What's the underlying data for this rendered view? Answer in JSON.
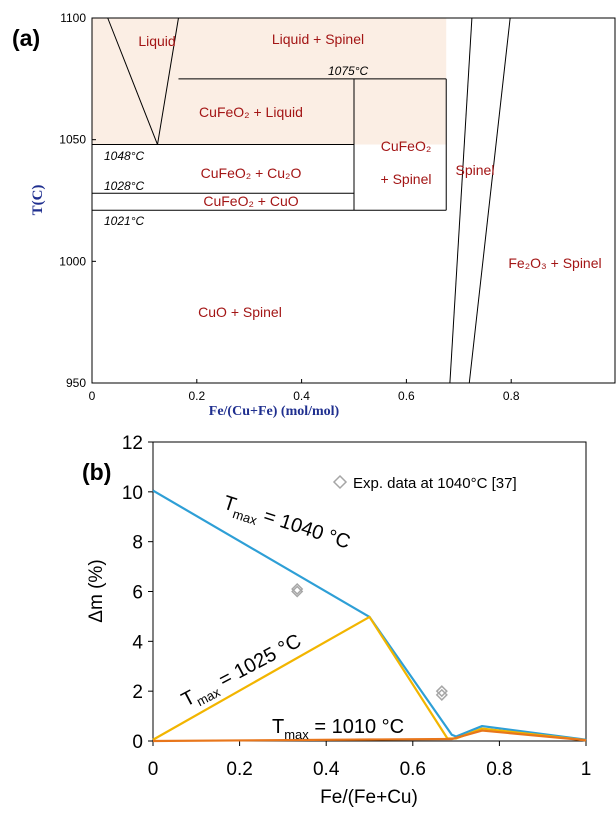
{
  "chart_data": [
    {
      "panel_label": "(a)",
      "type": "phase-diagram",
      "xlabel": "Fe/(Cu+Fe) (mol/mol)",
      "ylabel": "T(C)",
      "xlim": [
        0,
        1.0
      ],
      "ylim": [
        950,
        1100
      ],
      "x_ticks": [
        "0",
        "0.2",
        "0.4",
        "0.6",
        "0.8"
      ],
      "y_ticks": [
        "950",
        "1000",
        "1050",
        "1100"
      ],
      "grid": false,
      "isotherm_labels": [
        {
          "text": "1075°C",
          "value": 1075
        },
        {
          "text": "1048°C",
          "value": 1048
        },
        {
          "text": "1028°C",
          "value": 1028
        },
        {
          "text": "1021°C",
          "value": 1021
        }
      ],
      "region_labels": {
        "liquid": "Liquid",
        "liquid_spinel": "Liquid + Spinel",
        "cufeo2_liquid": "CuFeO₂ + Liquid",
        "cufeo2_cu2o": "CuFeO₂ + Cu₂O",
        "cufeo2_cuo": "CuFeO₂ + CuO",
        "cufeo2_spinel_1": "CuFeO₂",
        "cufeo2_spinel_2": "+ Spinel",
        "spinel": "Spinel",
        "fe2o3_spinel": "Fe₂O₃ + Spinel",
        "cuo_spinel": "CuO + Spinel"
      },
      "phase_boundaries": [
        {
          "x": [
            0.03,
            0.125
          ],
          "y": [
            1100,
            1048
          ]
        },
        {
          "x": [
            0.125,
            0.165
          ],
          "y": [
            1048,
            1100
          ]
        },
        {
          "x": [
            0.165,
            0.676
          ],
          "y": [
            1075,
            1075
          ]
        },
        {
          "x": [
            0,
            0.5
          ],
          "y": [
            1048,
            1048
          ]
        },
        {
          "x": [
            0,
            0.5
          ],
          "y": [
            1028,
            1028
          ]
        },
        {
          "x": [
            0,
            0.676
          ],
          "y": [
            1021,
            1021
          ]
        },
        {
          "x": [
            0.5,
            0.5
          ],
          "y": [
            1021,
            1075
          ]
        },
        {
          "x": [
            0.676,
            0.676
          ],
          "y": [
            1021,
            1075
          ]
        },
        {
          "x": [
            0.683,
            0.725
          ],
          "y": [
            950,
            1100
          ]
        },
        {
          "x": [
            0.72,
            0.798
          ],
          "y": [
            950,
            1100
          ]
        }
      ],
      "liquid_fill_color": "#fbeee4",
      "label_color": "#a31515",
      "axis_label_color": "#1f2f8f"
    },
    {
      "panel_label": "(b)",
      "type": "line",
      "xlabel": "Fe/(Fe+Cu)",
      "ylabel": "Δm (%)",
      "xlim": [
        0,
        1
      ],
      "ylim": [
        0,
        12
      ],
      "x_ticks": [
        "0",
        "0.2",
        "0.4",
        "0.6",
        "0.8",
        "1"
      ],
      "y_ticks": [
        "0",
        "2",
        "4",
        "6",
        "8",
        "10",
        "12"
      ],
      "grid": false,
      "legend": "top-right",
      "series": [
        {
          "name": "Tmax = 1040 °C",
          "name_main": "T",
          "name_sub": "max",
          "name_rest": " = 1040 °C",
          "color": "#2e9fd6",
          "x": [
            0,
            0.5,
            0.69,
            0.7,
            0.76,
            1.0
          ],
          "y": [
            10.05,
            4.98,
            0.25,
            0.18,
            0.6,
            0.05
          ]
        },
        {
          "name": "Tmax = 1025 °C",
          "name_main": "T",
          "name_sub": "max",
          "name_rest": " = 1025 °C",
          "color": "#f2b500",
          "x": [
            0,
            0.5,
            0.68,
            0.7,
            0.76,
            1.0
          ],
          "y": [
            0.05,
            4.98,
            0.1,
            0.1,
            0.5,
            0.03
          ]
        },
        {
          "name": "Tmax = 1010 °C",
          "name_main": "T",
          "name_sub": "max",
          "name_rest": " = 1010 °C",
          "color": "#e8761b",
          "x": [
            0,
            0.5,
            0.69,
            0.76,
            1.0
          ],
          "y": [
            0.0,
            0.06,
            0.08,
            0.42,
            0.03
          ]
        }
      ],
      "experimental": {
        "name": "Exp. data at 1040°C [37]",
        "color": "#a6a6a6",
        "x": [
          0.333,
          0.333,
          0.667,
          0.667
        ],
        "y": [
          6.0,
          6.1,
          1.85,
          2.0
        ]
      }
    }
  ]
}
